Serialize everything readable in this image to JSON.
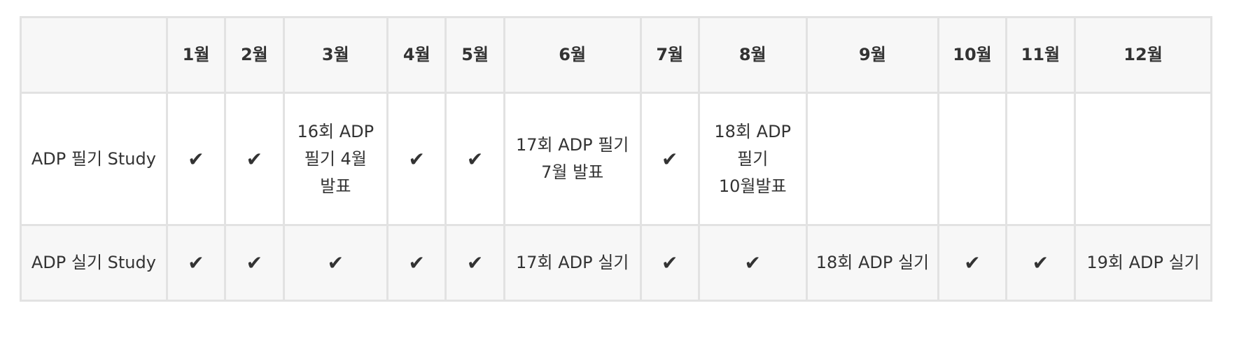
{
  "table": {
    "columns": [
      {
        "label": "",
        "width": 208
      },
      {
        "label": "1월",
        "width": 83
      },
      {
        "label": "2월",
        "width": 83
      },
      {
        "label": "3월",
        "width": 148
      },
      {
        "label": "4월",
        "width": 83
      },
      {
        "label": "5월",
        "width": 83
      },
      {
        "label": "6월",
        "width": 194
      },
      {
        "label": "7월",
        "width": 83
      },
      {
        "label": "8월",
        "width": 153
      },
      {
        "label": "9월",
        "width": 188
      },
      {
        "label": "10월",
        "width": 96
      },
      {
        "label": "11월",
        "width": 98
      },
      {
        "label": "12월",
        "width": 194
      }
    ],
    "rows": [
      {
        "name": "written",
        "cells": [
          "ADP 필기 Study",
          "✔",
          "✔",
          "16회 ADP 필기 4월 발표",
          "✔",
          "✔",
          "17회 ADP 필기 7월 발표",
          "✔",
          "18회 ADP 필기 10월발표",
          "",
          "",
          "",
          ""
        ]
      },
      {
        "name": "practical",
        "cells": [
          "ADP 실기 Study",
          "✔",
          "✔",
          "✔",
          "✔",
          "✔",
          "17회 ADP 실기",
          "✔",
          "✔",
          "18회 ADP 실기",
          "✔",
          "✔",
          "19회 ADP 실기"
        ]
      }
    ]
  }
}
